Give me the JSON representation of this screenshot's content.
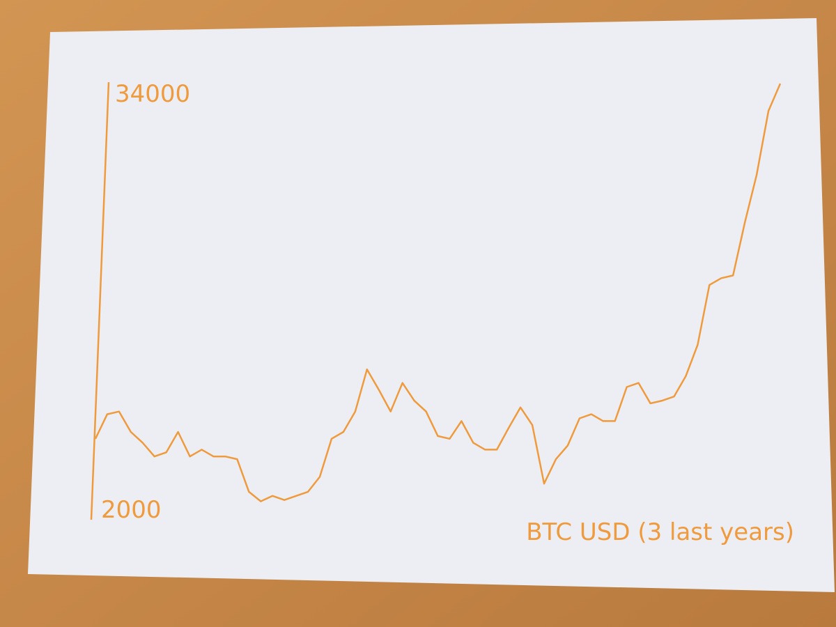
{
  "chart_data": {
    "type": "line",
    "title": "BTC USD (3 last years)",
    "values": [
      7900,
      9700,
      9900,
      8400,
      7600,
      6600,
      6900,
      8400,
      6600,
      7100,
      6600,
      6600,
      6400,
      4000,
      3300,
      3700,
      3400,
      3700,
      4000,
      5100,
      7900,
      8400,
      9900,
      13000,
      11500,
      9900,
      12000,
      10700,
      9900,
      8100,
      7900,
      9200,
      7600,
      7100,
      7100,
      8700,
      10200,
      8900,
      4600,
      6400,
      7400,
      9400,
      9700,
      9200,
      9200,
      11700,
      12000,
      10500,
      10700,
      11000,
      12500,
      14800,
      19200,
      19700,
      19900,
      23800,
      27300,
      32000,
      34000
    ],
    "color": "#ef9a3c",
    "ylim": [
      2000,
      34000
    ],
    "yticks": [
      2000,
      34000
    ]
  }
}
